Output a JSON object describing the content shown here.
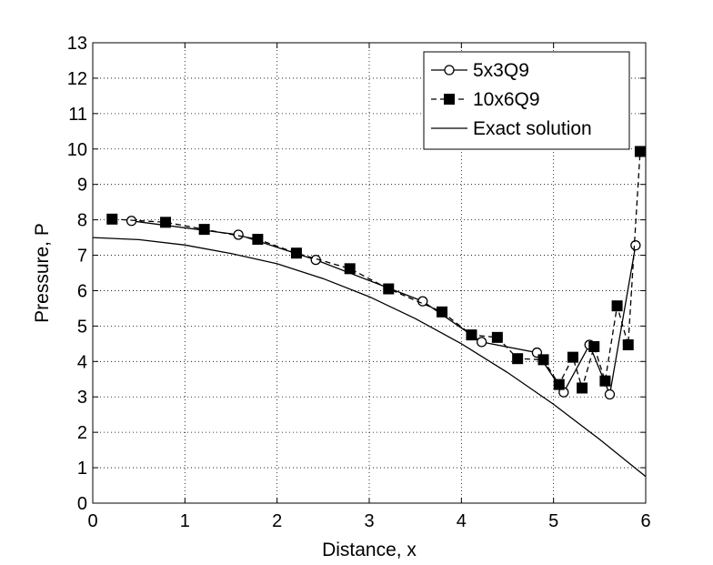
{
  "chart_data": {
    "type": "line",
    "title": "",
    "xlabel": "Distance, x",
    "ylabel": "Pressure, P",
    "xlim": [
      0,
      6
    ],
    "ylim": [
      0,
      13
    ],
    "xticks": [
      0,
      1,
      2,
      3,
      4,
      5,
      6
    ],
    "yticks": [
      0,
      1,
      2,
      3,
      4,
      5,
      6,
      7,
      8,
      9,
      10,
      11,
      12,
      13
    ],
    "grid": true,
    "legend_position": "top-right",
    "series": [
      {
        "name": "5x3Q9",
        "style": "solid",
        "marker": "open-circle",
        "color": "#000000",
        "x": [
          0.42,
          1.58,
          2.42,
          3.58,
          4.22,
          4.82,
          5.11,
          5.39,
          5.61,
          5.89
        ],
        "y": [
          7.97,
          7.58,
          6.87,
          5.7,
          4.55,
          4.25,
          3.13,
          4.47,
          3.07,
          7.28
        ]
      },
      {
        "name": "10x6Q9",
        "style": "dashed",
        "marker": "filled-square",
        "color": "#000000",
        "x": [
          0.21,
          0.79,
          1.21,
          1.79,
          2.21,
          2.79,
          3.21,
          3.79,
          4.11,
          4.39,
          4.61,
          4.89,
          5.06,
          5.21,
          5.31,
          5.44,
          5.56,
          5.69,
          5.81,
          5.94
        ],
        "y": [
          8.02,
          7.93,
          7.73,
          7.45,
          7.06,
          6.62,
          6.05,
          5.4,
          4.75,
          4.68,
          4.08,
          4.05,
          3.35,
          4.12,
          3.25,
          4.42,
          3.45,
          5.57,
          4.47,
          9.93
        ]
      },
      {
        "name": "Exact solution",
        "style": "solid",
        "marker": "none",
        "color": "#000000",
        "x": [
          0,
          0.5,
          1,
          1.5,
          2,
          2.5,
          3,
          3.5,
          4,
          4.5,
          5,
          5.5,
          6
        ],
        "y": [
          7.5,
          7.44,
          7.29,
          7.05,
          6.76,
          6.34,
          5.83,
          5.21,
          4.5,
          3.69,
          2.79,
          1.8,
          0.75
        ]
      }
    ]
  }
}
